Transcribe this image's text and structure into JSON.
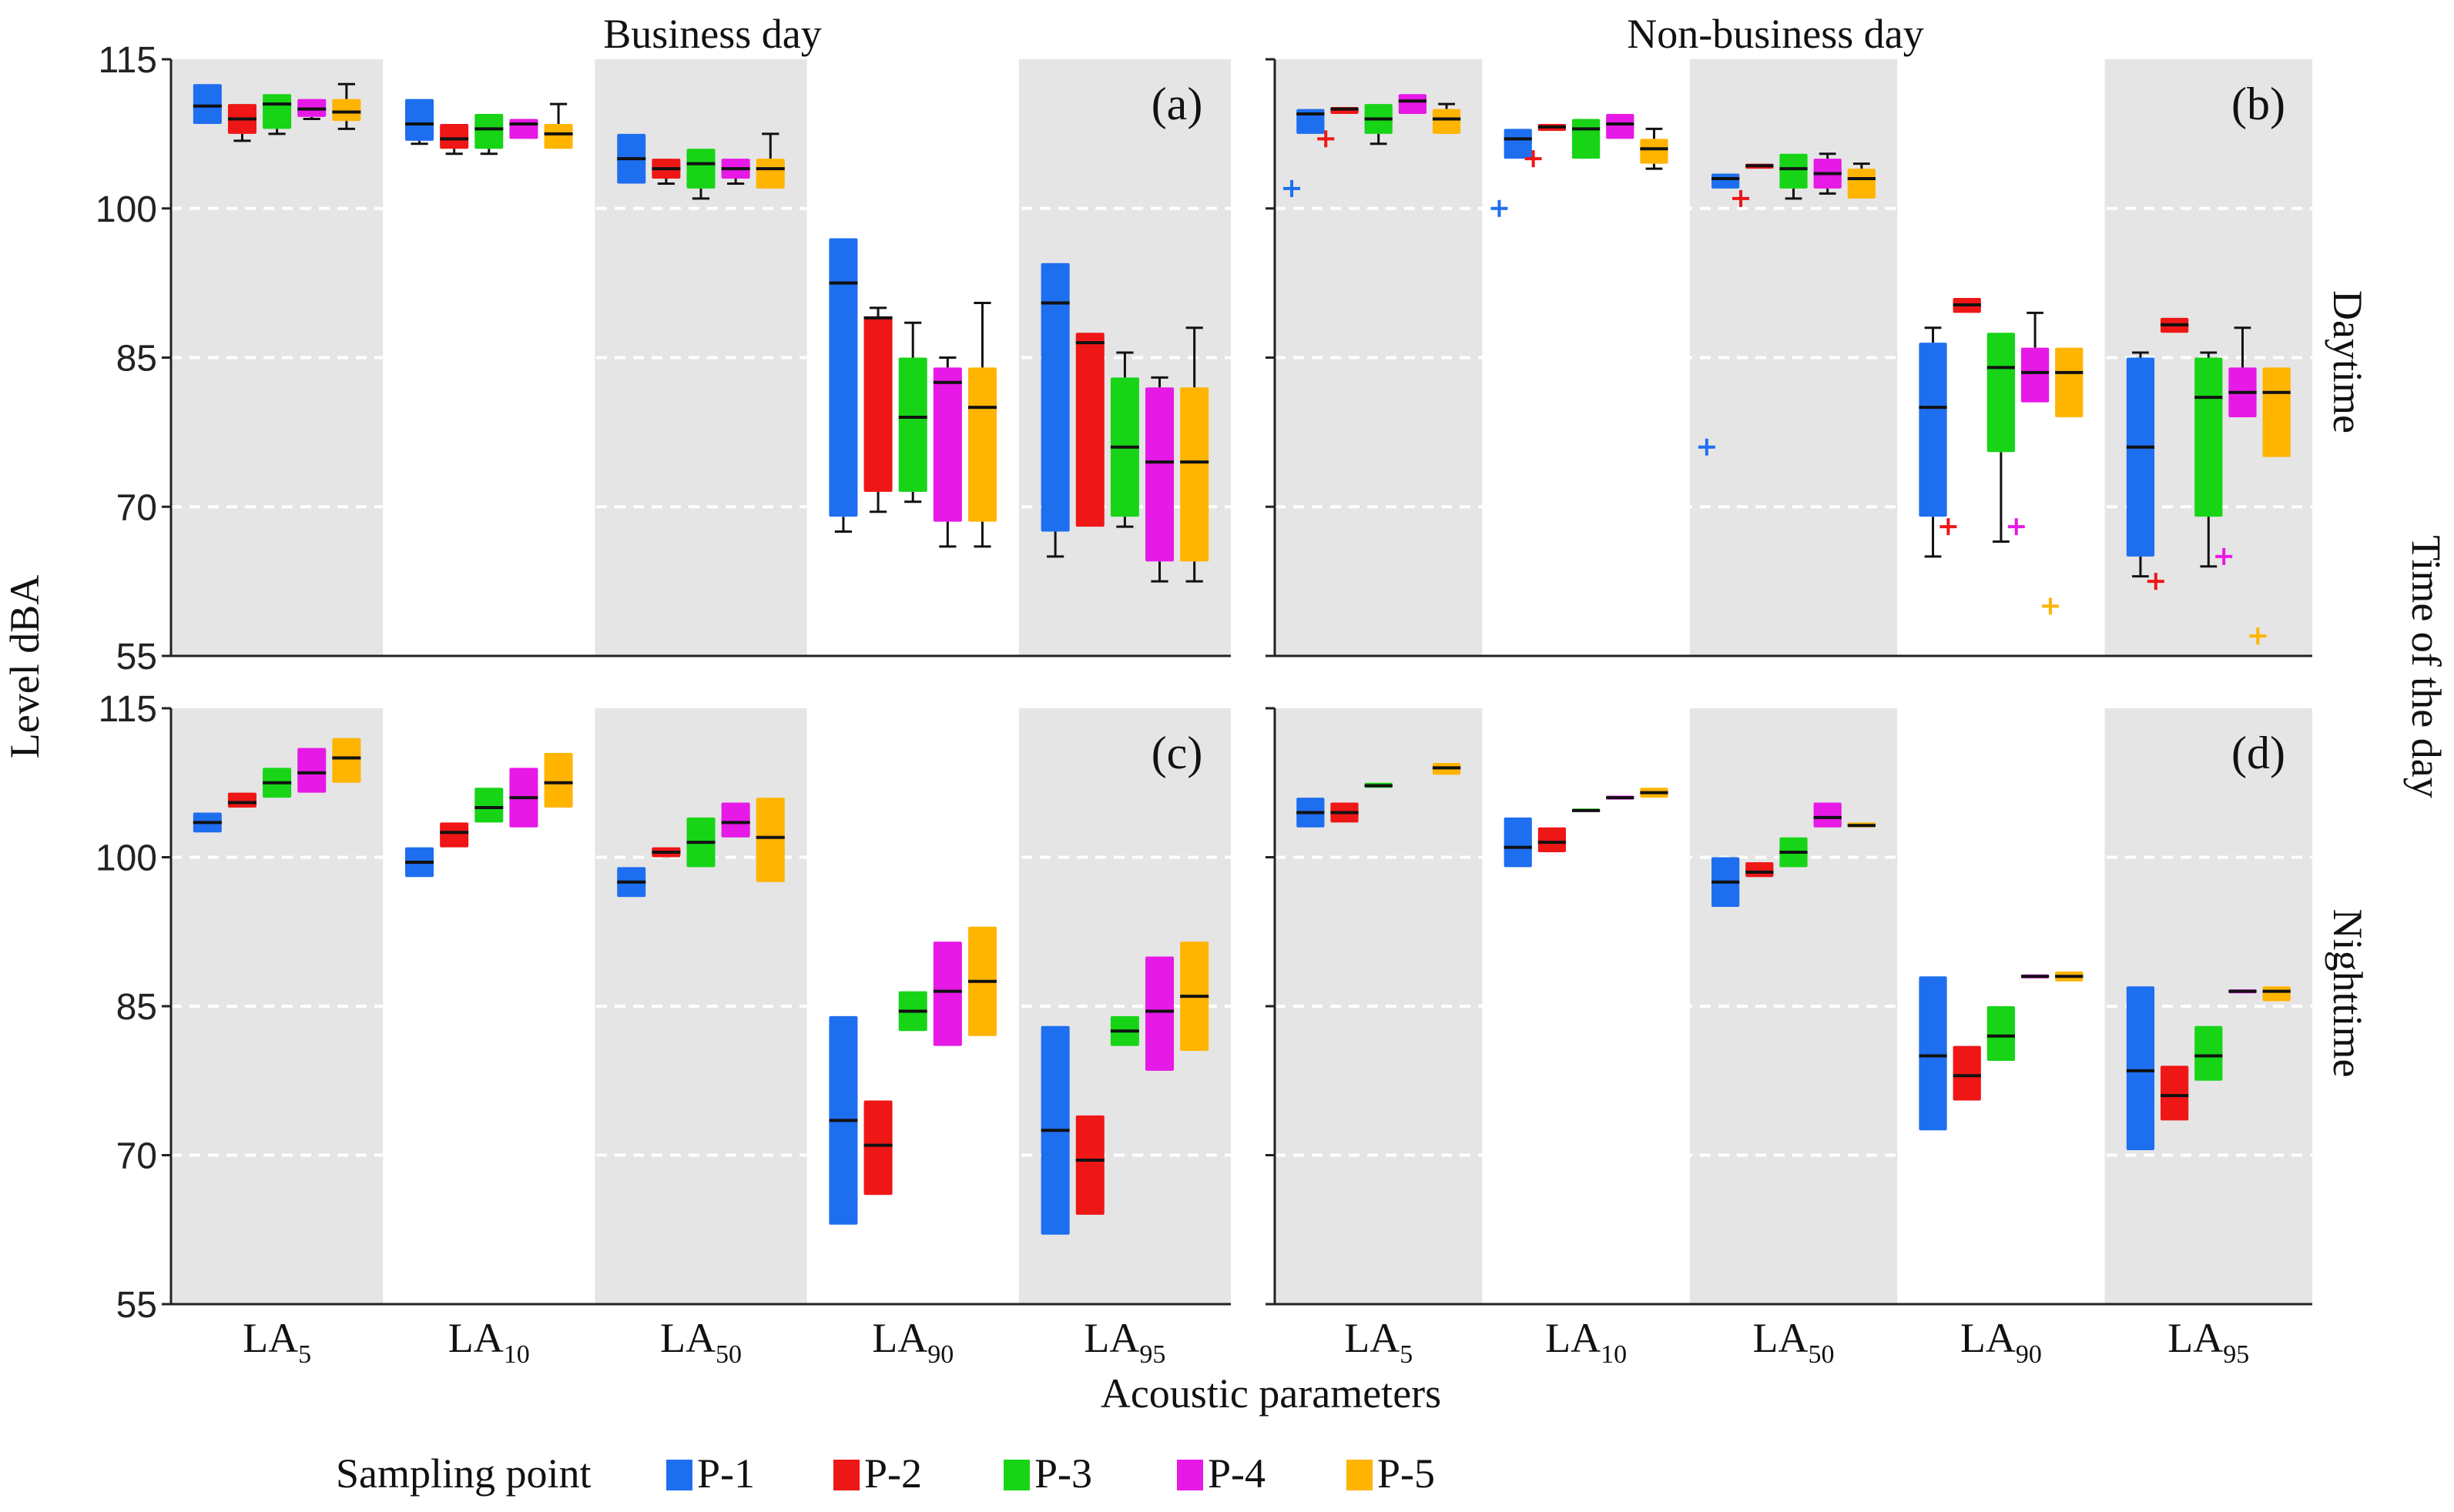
{
  "chart_data": {
    "type": "box",
    "title_cols": [
      "Business day",
      "Non-business day"
    ],
    "row_labels": [
      "Daytime",
      "Nighttime"
    ],
    "ylabel": "Level dBA",
    "xlabel": "Acoustic parameters",
    "right_label": "Time of the day",
    "ylim": [
      55,
      115
    ],
    "yticks": [
      55,
      70,
      85,
      100,
      115
    ],
    "gridlines": [
      70,
      85,
      100
    ],
    "categories": [
      {
        "base": "LA",
        "sub": "5"
      },
      {
        "base": "LA",
        "sub": "10"
      },
      {
        "base": "LA",
        "sub": "50"
      },
      {
        "base": "LA",
        "sub": "90"
      },
      {
        "base": "LA",
        "sub": "95"
      }
    ],
    "legend": {
      "title": "Sampling point",
      "items": [
        {
          "name": "P-1",
          "color": "#1e6ef0"
        },
        {
          "name": "P-2",
          "color": "#ef1616"
        },
        {
          "name": "P-3",
          "color": "#17d417"
        },
        {
          "name": "P-4",
          "color": "#e619e6"
        },
        {
          "name": "P-5",
          "color": "#ffb400"
        }
      ]
    },
    "panels": [
      {
        "label": "(a)",
        "row": 0,
        "col": 0,
        "boxes": [
          [
            [
              108.5,
              112.5,
              110.3,
              108.5,
              112.5
            ],
            [
              107.5,
              110.5,
              109.0,
              106.8,
              110.5
            ],
            [
              108.0,
              111.5,
              110.5,
              107.5,
              111.5
            ],
            [
              109.2,
              111.0,
              110.0,
              109.0,
              111.0
            ],
            [
              108.8,
              111.0,
              109.7,
              108.0,
              112.5
            ]
          ],
          [
            [
              106.8,
              111.0,
              108.5,
              106.5,
              111.0
            ],
            [
              106.0,
              108.5,
              107.0,
              105.5,
              108.5
            ],
            [
              106.0,
              109.5,
              108.0,
              105.5,
              109.5
            ],
            [
              107.0,
              109.0,
              108.5,
              107.0,
              109.0
            ],
            [
              106.0,
              108.5,
              107.5,
              106.0,
              110.5
            ]
          ],
          [
            [
              102.5,
              107.5,
              105.0,
              102.5,
              107.5
            ],
            [
              103.0,
              105.0,
              104.0,
              102.5,
              105.0
            ],
            [
              102.0,
              106.0,
              104.5,
              101.0,
              106.0
            ],
            [
              103.0,
              105.0,
              104.0,
              102.5,
              105.0
            ],
            [
              102.0,
              105.0,
              104.0,
              102.0,
              107.5
            ]
          ],
          [
            [
              69.0,
              97.0,
              92.5,
              67.5,
              97.0
            ],
            [
              71.5,
              89.0,
              89.0,
              69.5,
              90.0
            ],
            [
              71.5,
              85.0,
              79.0,
              70.5,
              88.5
            ],
            [
              68.5,
              84.0,
              82.5,
              66.0,
              85.0
            ],
            [
              68.5,
              84.0,
              80.0,
              66.0,
              90.5
            ]
          ],
          [
            [
              67.5,
              94.5,
              90.5,
              65.0,
              94.5
            ],
            [
              68.0,
              87.5,
              86.5,
              68.0,
              87.5
            ],
            [
              69.0,
              83.0,
              76.0,
              68.0,
              85.5
            ],
            [
              64.5,
              82.0,
              74.5,
              62.5,
              83.0
            ],
            [
              64.5,
              82.0,
              74.5,
              62.5,
              88.0
            ]
          ]
        ],
        "outliers": []
      },
      {
        "label": "(b)",
        "row": 0,
        "col": 1,
        "boxes": [
          [
            [
              107.5,
              110.0,
              109.5,
              107.5,
              110.0
            ],
            [
              109.5,
              110.2,
              110.0,
              109.5,
              110.2
            ],
            [
              107.5,
              110.5,
              109.0,
              106.5,
              110.5
            ],
            [
              109.5,
              111.5,
              110.8,
              109.5,
              111.5
            ],
            [
              107.5,
              110.0,
              109.0,
              107.5,
              110.5
            ]
          ],
          [
            [
              105.0,
              108.0,
              107.0,
              105.0,
              108.0
            ],
            [
              107.8,
              108.5,
              108.2,
              107.8,
              108.5
            ],
            [
              105.0,
              109.0,
              108.0,
              105.0,
              109.0
            ],
            [
              107.0,
              109.5,
              108.5,
              107.0,
              109.5
            ],
            [
              104.5,
              107.0,
              106.0,
              104.0,
              108.0
            ]
          ],
          [
            [
              102.0,
              103.5,
              103.0,
              102.0,
              103.5
            ],
            [
              104.0,
              104.5,
              104.3,
              104.0,
              104.5
            ],
            [
              102.0,
              105.5,
              104.0,
              101.0,
              105.5
            ],
            [
              102.0,
              105.0,
              103.5,
              101.5,
              105.5
            ],
            [
              101.0,
              104.0,
              103.0,
              101.0,
              104.5
            ]
          ],
          [
            [
              69.0,
              86.5,
              80.0,
              65.0,
              88.0
            ],
            [
              89.5,
              91.0,
              90.3,
              89.5,
              91.0
            ],
            [
              75.5,
              87.5,
              84.0,
              66.5,
              87.5
            ],
            [
              80.5,
              86.0,
              83.5,
              80.5,
              89.5
            ],
            [
              79.0,
              86.0,
              83.5,
              79.0,
              86.0
            ]
          ],
          [
            [
              65.0,
              85.0,
              76.0,
              63.0,
              85.5
            ],
            [
              87.5,
              89.0,
              88.3,
              87.5,
              89.0
            ],
            [
              69.0,
              85.0,
              81.0,
              64.0,
              85.5
            ],
            [
              79.0,
              84.0,
              81.5,
              79.0,
              88.0
            ],
            [
              75.0,
              84.0,
              81.5,
              75.0,
              84.0
            ]
          ]
        ],
        "outliers": [
          {
            "cat": 0,
            "series": 0,
            "value": 102.0
          },
          {
            "cat": 0,
            "series": 1,
            "value": 107.0
          },
          {
            "cat": 1,
            "series": 0,
            "value": 100.0
          },
          {
            "cat": 1,
            "series": 1,
            "value": 105.0
          },
          {
            "cat": 2,
            "series": 0,
            "value": 76.0
          },
          {
            "cat": 2,
            "series": 1,
            "value": 101.0
          },
          {
            "cat": 3,
            "series": 1,
            "value": 68.0
          },
          {
            "cat": 3,
            "series": 3,
            "value": 68.0
          },
          {
            "cat": 3,
            "series": 4,
            "value": 60.0
          },
          {
            "cat": 4,
            "series": 1,
            "value": 62.5
          },
          {
            "cat": 4,
            "series": 3,
            "value": 65.0
          },
          {
            "cat": 4,
            "series": 4,
            "value": 57.0
          }
        ]
      },
      {
        "label": "(c)",
        "row": 1,
        "col": 0,
        "boxes": [
          [
            [
              102.5,
              104.5,
              103.5,
              102.5,
              104.5
            ],
            [
              105.0,
              106.5,
              105.5,
              105.0,
              106.5
            ],
            [
              106.0,
              109.0,
              107.5,
              106.0,
              109.0
            ],
            [
              106.5,
              111.0,
              108.5,
              106.5,
              111.0
            ],
            [
              107.5,
              112.0,
              110.0,
              107.5,
              112.0
            ]
          ],
          [
            [
              98.0,
              101.0,
              99.5,
              98.0,
              101.0
            ],
            [
              101.0,
              103.5,
              102.5,
              101.0,
              103.5
            ],
            [
              103.5,
              107.0,
              105.0,
              103.5,
              107.0
            ],
            [
              103.0,
              109.0,
              106.0,
              103.0,
              109.0
            ],
            [
              105.0,
              110.5,
              107.5,
              105.0,
              110.5
            ]
          ],
          [
            [
              96.0,
              99.0,
              97.5,
              96.0,
              99.0
            ],
            [
              100.0,
              101.0,
              100.5,
              100.0,
              101.0
            ],
            [
              99.0,
              104.0,
              101.5,
              99.0,
              104.0
            ],
            [
              102.0,
              105.5,
              103.5,
              102.0,
              105.5
            ],
            [
              97.5,
              106.0,
              102.0,
              97.5,
              106.0
            ]
          ],
          [
            [
              63.0,
              84.0,
              73.5,
              63.0,
              84.0
            ],
            [
              66.0,
              75.5,
              71.0,
              66.0,
              75.5
            ],
            [
              82.5,
              86.5,
              84.5,
              82.5,
              86.5
            ],
            [
              81.0,
              91.5,
              86.5,
              81.0,
              91.5
            ],
            [
              82.0,
              93.0,
              87.5,
              82.0,
              93.0
            ]
          ],
          [
            [
              62.0,
              83.0,
              72.5,
              62.0,
              83.0
            ],
            [
              64.0,
              74.0,
              69.5,
              64.0,
              74.0
            ],
            [
              81.0,
              84.0,
              82.5,
              81.0,
              84.0
            ],
            [
              78.5,
              90.0,
              84.5,
              78.5,
              90.0
            ],
            [
              80.5,
              91.5,
              86.0,
              80.5,
              91.5
            ]
          ]
        ],
        "outliers": []
      },
      {
        "label": "(d)",
        "row": 1,
        "col": 1,
        "boxes": [
          [
            [
              103.0,
              106.0,
              104.5,
              103.0,
              106.0
            ],
            [
              103.5,
              105.5,
              104.5,
              103.5,
              105.5
            ],
            [
              107.0,
              107.5,
              107.2,
              107.0,
              107.5
            ],
            null,
            [
              108.3,
              109.5,
              109.0,
              108.3,
              109.5
            ]
          ],
          [
            [
              99.0,
              104.0,
              101.0,
              99.0,
              104.0
            ],
            [
              100.5,
              103.0,
              101.5,
              100.5,
              103.0
            ],
            [
              104.6,
              104.9,
              104.7,
              104.6,
              104.9
            ],
            [
              105.8,
              106.2,
              106.0,
              105.8,
              106.2
            ],
            [
              106.0,
              107.0,
              106.5,
              106.0,
              107.0
            ]
          ],
          [
            [
              95.0,
              100.0,
              97.5,
              95.0,
              100.0
            ],
            [
              98.0,
              99.5,
              98.5,
              98.0,
              99.5
            ],
            [
              99.0,
              102.0,
              100.5,
              99.0,
              102.0
            ],
            [
              103.0,
              105.5,
              104.0,
              103.0,
              105.5
            ],
            [
              103.0,
              103.5,
              103.2,
              103.0,
              103.5
            ]
          ],
          [
            [
              72.5,
              88.0,
              80.0,
              72.5,
              88.0
            ],
            [
              75.5,
              81.0,
              78.0,
              75.5,
              81.0
            ],
            [
              79.5,
              85.0,
              82.0,
              79.5,
              85.0
            ],
            [
              87.8,
              88.2,
              88.0,
              87.8,
              88.2
            ],
            [
              87.5,
              88.5,
              88.0,
              87.5,
              88.5
            ]
          ],
          [
            [
              70.5,
              87.0,
              78.5,
              70.5,
              87.0
            ],
            [
              73.5,
              79.0,
              76.0,
              73.5,
              79.0
            ],
            [
              77.5,
              83.0,
              80.0,
              77.5,
              83.0
            ],
            [
              86.3,
              86.7,
              86.5,
              86.3,
              86.7
            ],
            [
              85.5,
              87.0,
              86.5,
              85.5,
              87.0
            ]
          ]
        ],
        "outliers": []
      }
    ]
  }
}
